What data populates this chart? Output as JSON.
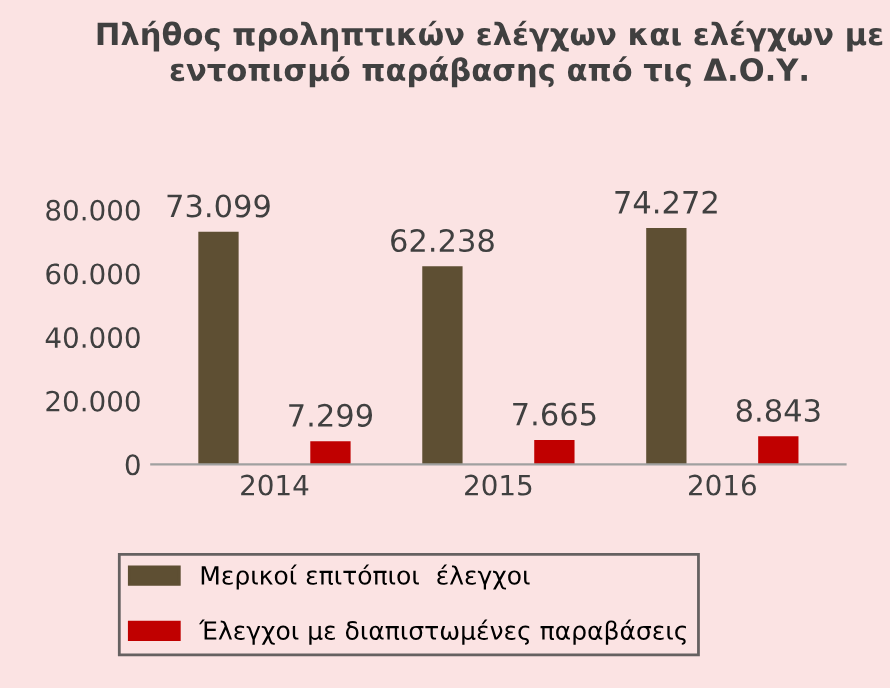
{
  "chart_data": {
    "type": "bar",
    "title": "Πλήθος προληπτικών ελέγχων και ελέγχων με εντοπισμό παράβασης από τις Δ.Ο.Υ.",
    "categories": [
      "2014",
      "2015",
      "2016"
    ],
    "series": [
      {
        "name": "Μερικοί επιτόπιοι  έλεγχοι",
        "color": "#5e4f33",
        "values": [
          73099,
          62238,
          74272
        ],
        "value_labels": [
          "73.099",
          "62.238",
          "74.272"
        ]
      },
      {
        "name": "Έλεγχοι με διαπιστωμένες παραβάσεις",
        "color": "#c00000",
        "values": [
          7299,
          7665,
          8843
        ],
        "value_labels": [
          "7.299",
          "7.665",
          "8.843"
        ]
      }
    ],
    "ylim": [
      0,
      80000
    ],
    "yticks": [
      {
        "value": 0,
        "label": "0"
      },
      {
        "value": 20000,
        "label": "20.000"
      },
      {
        "value": 40000,
        "label": "40.000"
      },
      {
        "value": 60000,
        "label": "60.000"
      },
      {
        "value": 80000,
        "label": "80.000"
      }
    ],
    "grid": false,
    "legend": "bottom"
  }
}
